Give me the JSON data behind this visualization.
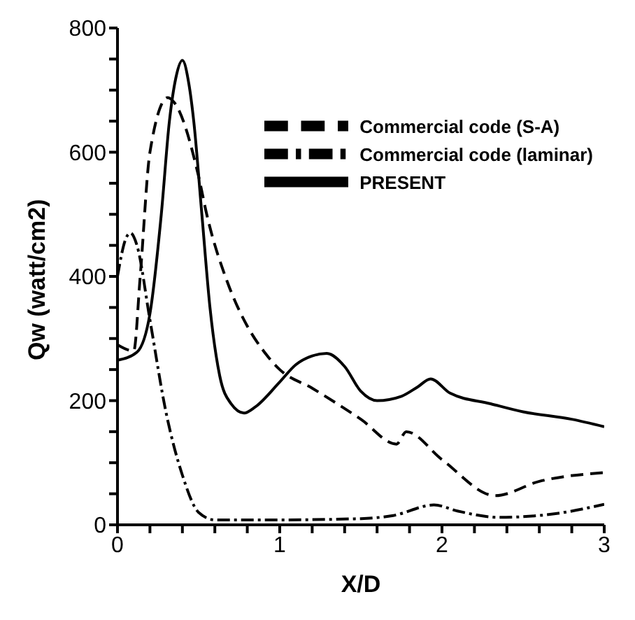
{
  "chart_data": {
    "type": "line",
    "xlabel": "X/D",
    "ylabel": "Qw (watt/cm2)",
    "xlim": [
      0,
      3
    ],
    "xticks": [
      0,
      {
        "value": 0.2,
        "label": null
      },
      {
        "value": 0.4,
        "label": null
      },
      {
        "value": 0.6,
        "label": null
      },
      {
        "value": 0.8,
        "label": null
      },
      1,
      {
        "value": 1.2,
        "label": null
      },
      {
        "value": 1.4,
        "label": null
      },
      {
        "value": 1.6,
        "label": null
      },
      {
        "value": 1.8,
        "label": null
      },
      2,
      {
        "value": 2.2,
        "label": null
      },
      {
        "value": 2.4,
        "label": null
      },
      {
        "value": 2.6,
        "label": null
      },
      {
        "value": 2.8,
        "label": null
      },
      3
    ],
    "ylim": [
      0,
      800
    ],
    "yticks": [
      0,
      {
        "value": 50,
        "label": null
      },
      {
        "value": 100,
        "label": null
      },
      {
        "value": 150,
        "label": null
      },
      200,
      {
        "value": 250,
        "label": null
      },
      {
        "value": 300,
        "label": null
      },
      {
        "value": 350,
        "label": null
      },
      400,
      {
        "value": 450,
        "label": null
      },
      {
        "value": 500,
        "label": null
      },
      {
        "value": 550,
        "label": null
      },
      600,
      {
        "value": 650,
        "label": null
      },
      {
        "value": 700,
        "label": null
      },
      {
        "value": 750,
        "label": null
      },
      800
    ],
    "legend": "top right",
    "marker": "none",
    "series": [
      {
        "name": "PRESENT",
        "color": "#000000",
        "line_style": "solid",
        "x": [
          0,
          0.12,
          0.2,
          0.27,
          0.32,
          0.36,
          0.4,
          0.44,
          0.47,
          0.52,
          0.57,
          0.63,
          0.7,
          0.78,
          0.85,
          1.0,
          1.1,
          1.2,
          1.29,
          1.4,
          1.5,
          1.6,
          1.75,
          1.85,
          1.93,
          2.05,
          2.3,
          2.5,
          2.8,
          3.0
        ],
        "values": [
          265,
          278,
          340,
          500,
          650,
          720,
          748,
          710,
          650,
          500,
          350,
          240,
          195,
          180,
          190,
          230,
          258,
          272,
          276,
          255,
          215,
          200,
          207,
          222,
          235,
          212,
          195,
          182,
          170,
          158
        ]
      },
      {
        "name": "Commercial code (laminar)",
        "color": "#000000",
        "line_style": "dashdot",
        "x": [
          0,
          0.05,
          0.08,
          0.12,
          0.2,
          0.3,
          0.4,
          0.5,
          0.6,
          1.0,
          1.5,
          1.7,
          1.95,
          2.1,
          2.35,
          2.7,
          3.0
        ],
        "values": [
          400,
          460,
          470,
          450,
          330,
          180,
          80,
          20,
          8,
          8,
          10,
          15,
          32,
          22,
          12,
          18,
          33
        ]
      },
      {
        "name": "Commercial code (S-A)",
        "color": "#000000",
        "line_style": "dashed",
        "x": [
          0,
          0.1,
          0.14,
          0.2,
          0.31,
          0.35,
          0.5,
          0.55,
          0.68,
          0.8,
          0.9,
          1.0,
          1.2,
          1.5,
          1.72,
          1.78,
          2.0,
          2.33,
          2.6,
          3.0
        ],
        "values": [
          290,
          280,
          400,
          600,
          688,
          680,
          561,
          500,
          389,
          320,
          280,
          250,
          220,
          170,
          130,
          150,
          105,
          47,
          70,
          84
        ]
      }
    ]
  }
}
